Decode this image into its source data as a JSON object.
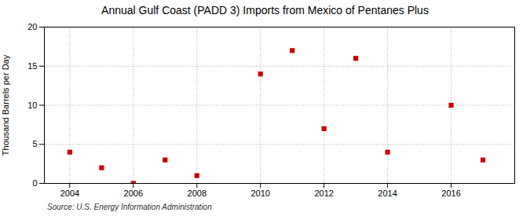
{
  "chart_data": {
    "type": "scatter",
    "title": "Annual Gulf Coast (PADD 3) Imports from Mexico of Pentanes Plus",
    "ylabel": "Thousand Barrels per Day",
    "source": "Source: U.S. Energy Information Administration",
    "x": [
      2004,
      2005,
      2006,
      2007,
      2008,
      2010,
      2011,
      2012,
      2013,
      2014,
      2016,
      2017
    ],
    "values": [
      4,
      2,
      0,
      3,
      1,
      14,
      17,
      7,
      16,
      4,
      10,
      3
    ],
    "color": "#cc0000",
    "marker": "square",
    "xlim": [
      2003.2,
      2018
    ],
    "xticks": [
      2004,
      2006,
      2008,
      2010,
      2012,
      2014,
      2016
    ],
    "ylim": [
      0,
      20
    ],
    "yticks": [
      0,
      5,
      10,
      15,
      20
    ],
    "grid": true
  }
}
